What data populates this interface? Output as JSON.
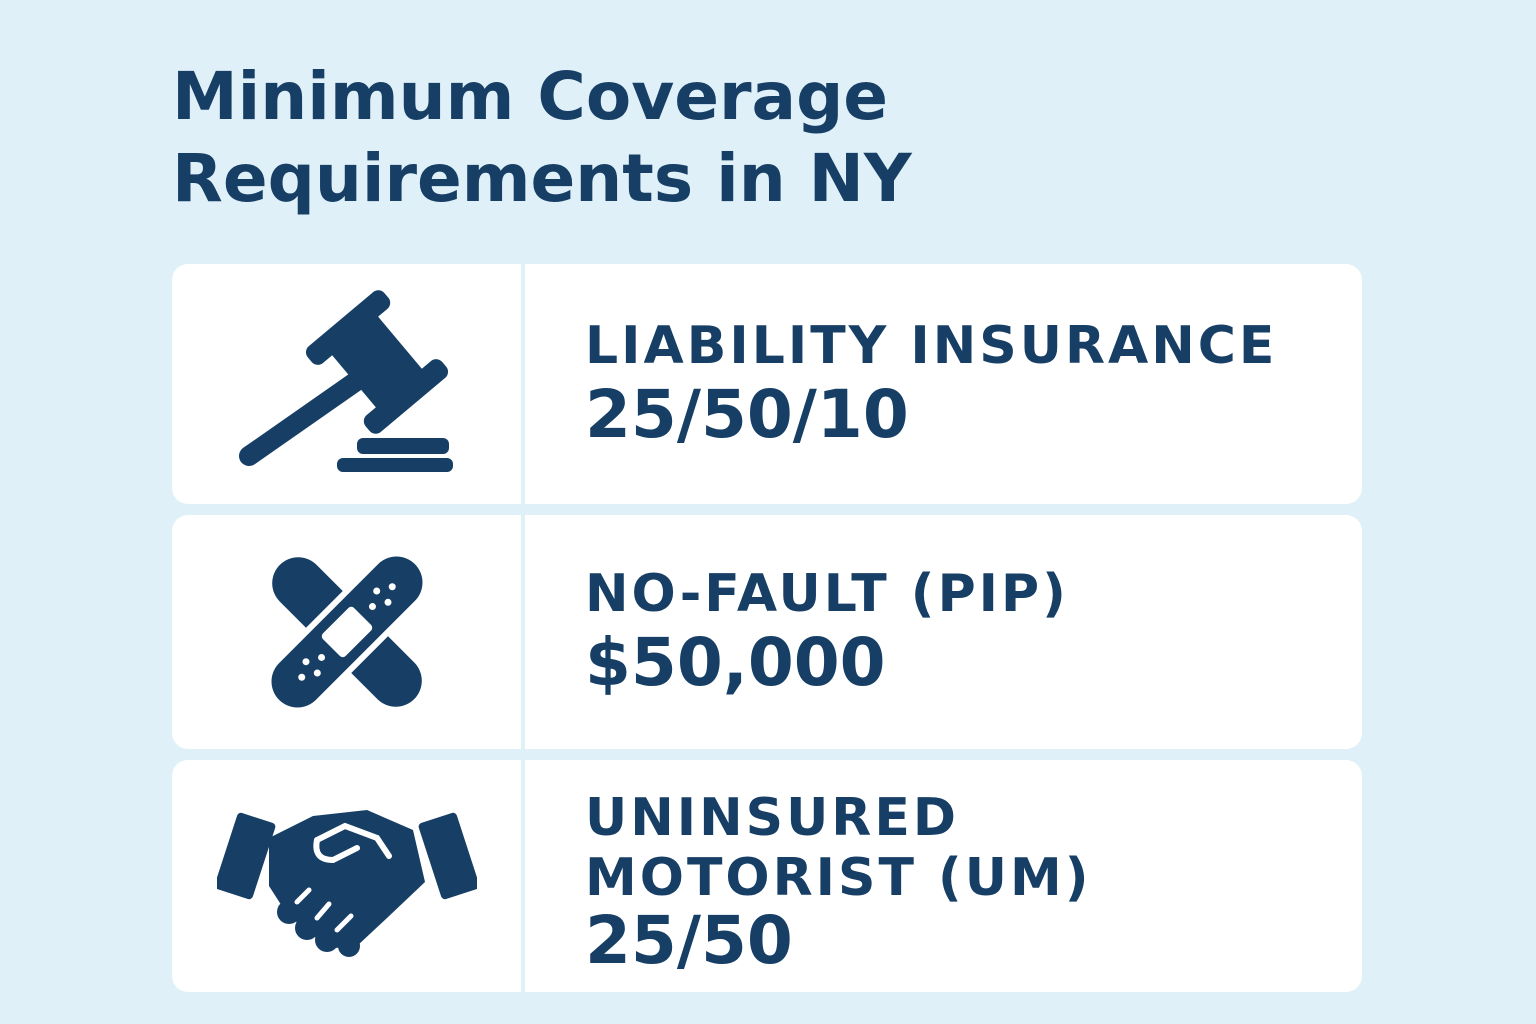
{
  "title": {
    "line1": "Minimum Coverage",
    "line2": "Requirements in NY"
  },
  "colors": {
    "background": "#dff0f8",
    "card": "#ffffff",
    "primary": "#173f66"
  },
  "items": [
    {
      "icon": "gavel-icon",
      "label_lines": [
        "LIABILITY INSURANCE"
      ],
      "value": "25/50/10"
    },
    {
      "icon": "bandage-icon",
      "label_lines": [
        "NO-FAULT (PIP)"
      ],
      "value": "$50,000"
    },
    {
      "icon": "handshake-icon",
      "label_lines": [
        "UNINSURED",
        "MOTORIST (UM)"
      ],
      "value": "25/50"
    }
  ]
}
